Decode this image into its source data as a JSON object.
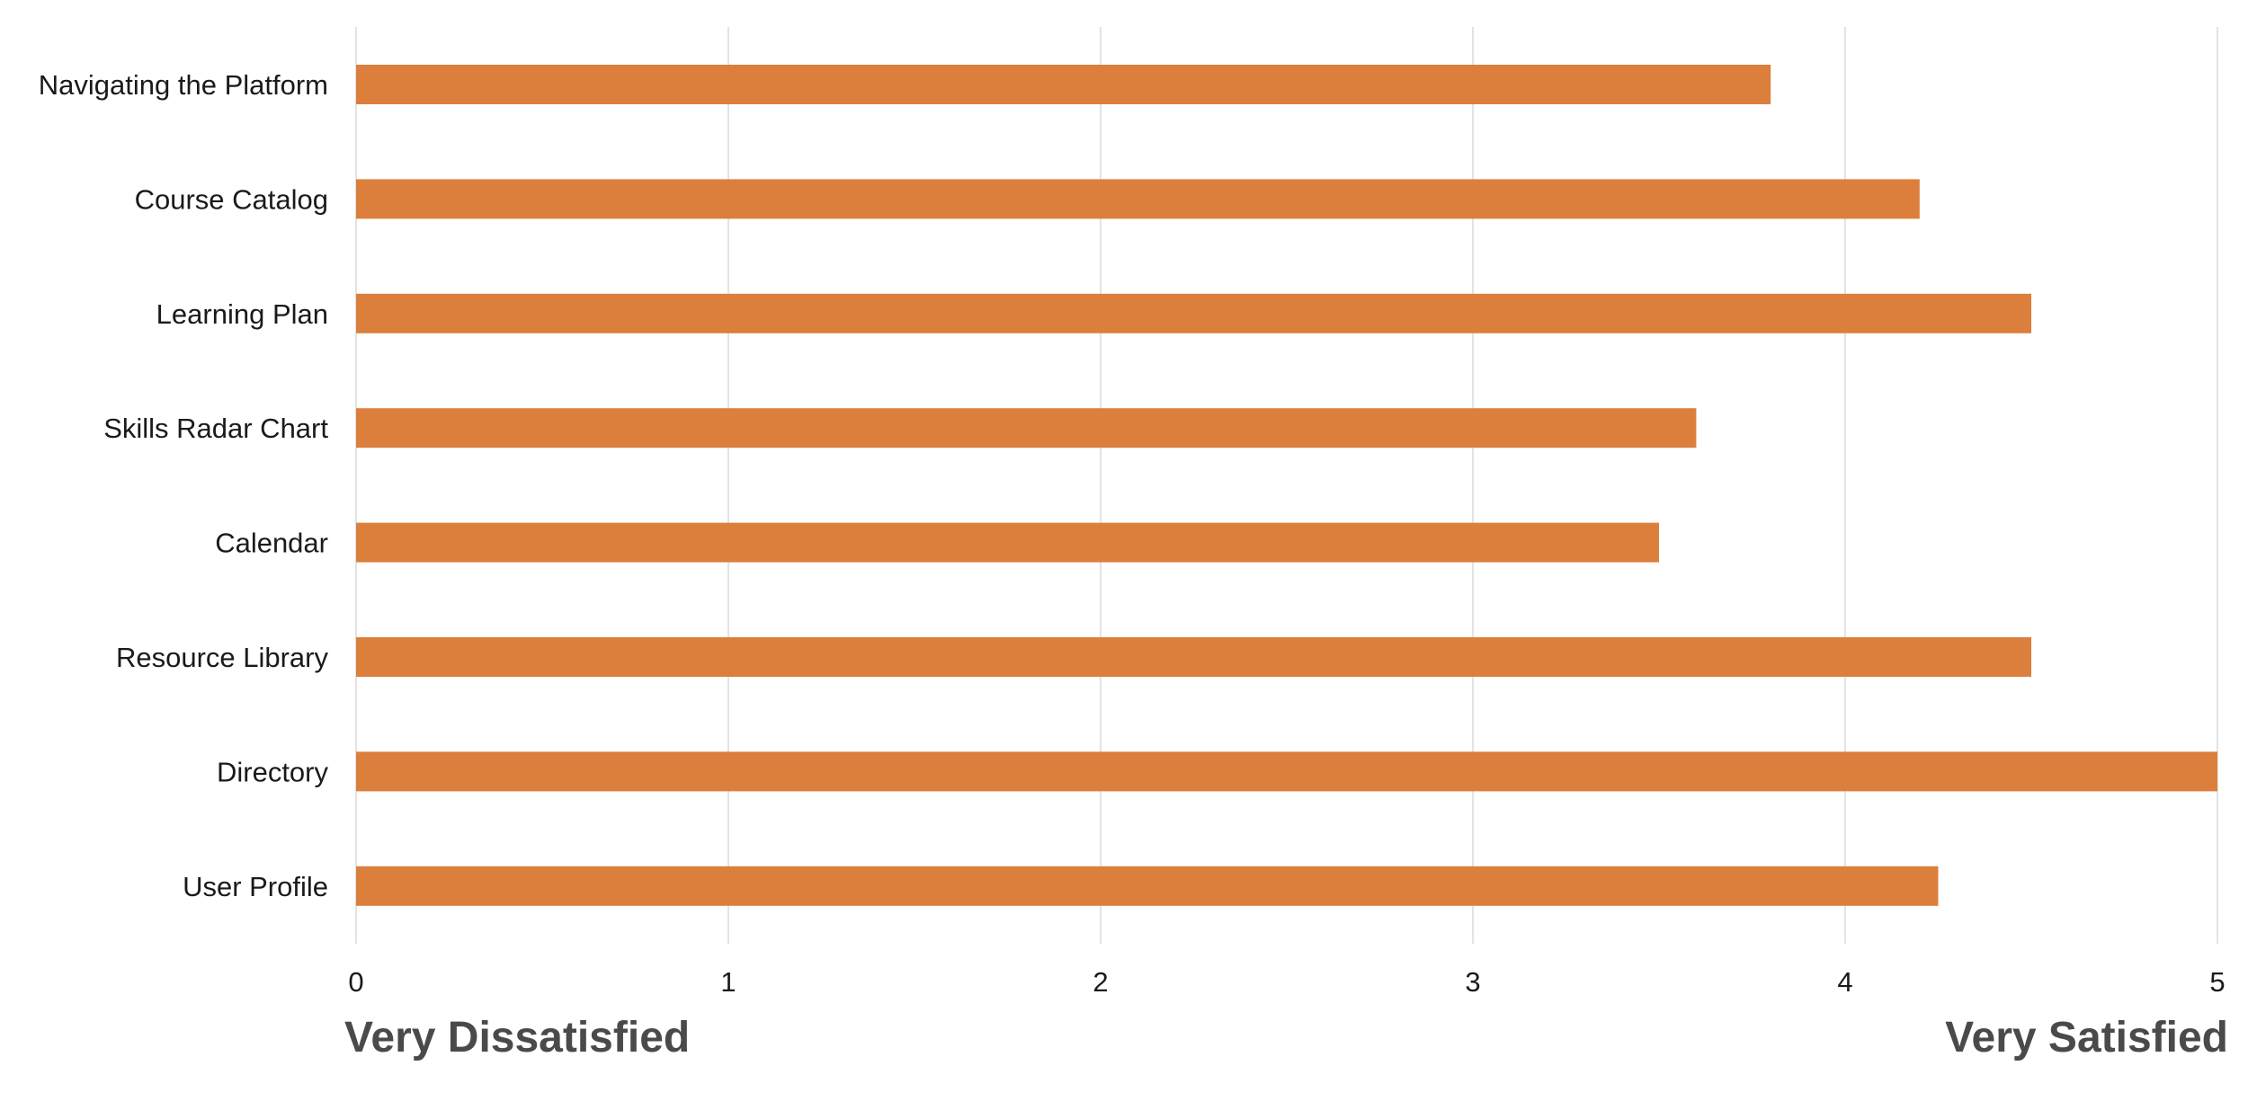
{
  "chart_data": {
    "type": "bar",
    "orientation": "horizontal",
    "categories": [
      "Navigating the Platform",
      "Course Catalog",
      "Learning Plan",
      "Skills Radar Chart",
      "Calendar",
      "Resource Library",
      "Directory",
      "User Profile"
    ],
    "values": [
      3.8,
      4.2,
      4.5,
      3.6,
      3.5,
      4.5,
      5.0,
      4.25
    ],
    "xlim": [
      0,
      5
    ],
    "xticks": [
      "0",
      "1",
      "2",
      "3",
      "4",
      "5"
    ],
    "x_min_label": "Very Dissatisfied",
    "x_max_label": "Very Satisfied",
    "grid": true,
    "bar_color": "#dc7f3c",
    "grid_color": "#e3e3e3"
  }
}
